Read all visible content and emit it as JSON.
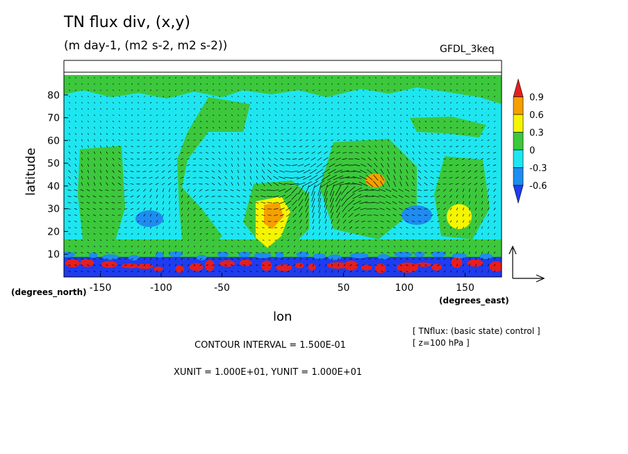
{
  "header": {
    "title": "TN flux div, (x,y)",
    "subtitle": "(m day-1, (m2 s-2, m2 s-2))",
    "model": "GFDL_3keq"
  },
  "footer": {
    "contour_interval": "CONTOUR INTERVAL = 1.500E-01",
    "units": "XUNIT = 1.000E+01, YUNIT = 1.000E+01",
    "note1": "[ TNflux: (basic state) control ]",
    "note2": "[ z=100 hPa ]"
  },
  "chart_data": {
    "type": "heatmap",
    "title": "TN flux div, (x,y)",
    "subtitle": "(m day-1, (m2 s-2, m2 s-2))",
    "xlabel": "lon",
    "ylabel": "latitude",
    "xunit_label": "(degrees_east)",
    "yunit_label": "(degrees_north)",
    "xlim": [
      -180,
      180
    ],
    "ylim": [
      0,
      90
    ],
    "xticks": [
      -150,
      -100,
      -50,
      50,
      100,
      150
    ],
    "yticks": [
      10,
      20,
      30,
      40,
      50,
      60,
      70,
      80
    ],
    "overlay": "vector",
    "colorbar": {
      "levels": [
        0.9,
        0.6,
        0.3,
        0,
        -0.3,
        -0.6
      ],
      "colors": [
        "#e61e1e",
        "#f5a000",
        "#f5f500",
        "#3cc83c",
        "#1ee6f0",
        "#1e8cf0",
        "#1e3cf0"
      ],
      "extend": "both"
    }
  }
}
